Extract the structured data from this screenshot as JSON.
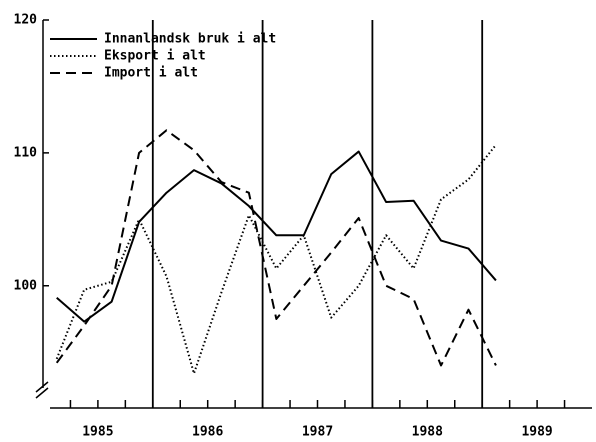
{
  "chart_data": {
    "type": "line",
    "x": [
      1985.125,
      1985.375,
      1985.625,
      1985.875,
      1986.125,
      1986.375,
      1986.625,
      1986.875,
      1987.125,
      1987.375,
      1987.625,
      1987.875,
      1988.125,
      1988.375,
      1988.625,
      1988.875,
      1989.125
    ],
    "series": [
      {
        "name": "Innanlandsk bruk i alt",
        "color": "#000000",
        "style": "solid",
        "values": [
          99.1,
          97.3,
          98.8,
          104.8,
          107,
          108.7,
          107.7,
          106,
          103.8,
          103.8,
          108.4,
          110.1,
          106.3,
          106.4,
          103.4,
          102.8,
          100.4
        ]
      },
      {
        "name": "Eksport i alt",
        "color": "#000000",
        "style": "dotted",
        "values": [
          94.5,
          99.7,
          100.3,
          105,
          100.7,
          93.4,
          99.5,
          105.3,
          101.3,
          103.8,
          97.6,
          100,
          103.8,
          101.3,
          106.5,
          108,
          110.6
        ]
      },
      {
        "name": "Import i alt",
        "color": "#000000",
        "style": "dashed",
        "values": [
          94.2,
          97,
          100,
          110,
          111.7,
          110.2,
          107.8,
          107,
          97.5,
          100,
          102.5,
          105.1,
          100,
          99,
          94,
          98.2,
          94
        ]
      }
    ],
    "xlim": [
      1985,
      1990
    ],
    "ylim": [
      90.8,
      120
    ],
    "yticks": [
      100,
      110,
      120
    ],
    "xticks": [
      {
        "value": 1985.5,
        "label": "1985"
      },
      {
        "value": 1986.5,
        "label": "1986"
      },
      {
        "value": 1987.5,
        "label": "1987"
      },
      {
        "value": 1988.5,
        "label": "1988"
      },
      {
        "value": 1989.5,
        "label": "1989"
      }
    ],
    "x_minor_ticks": [
      1985.25,
      1985.5,
      1985.75,
      1986,
      1986.25,
      1986.5,
      1986.75,
      1987,
      1987.25,
      1987.5,
      1987.75,
      1988,
      1988.25,
      1988.5,
      1988.75,
      1989,
      1989.25,
      1989.5,
      1989.75
    ],
    "vlines": [
      1986,
      1987,
      1988,
      1989
    ],
    "legend": "upper left"
  }
}
